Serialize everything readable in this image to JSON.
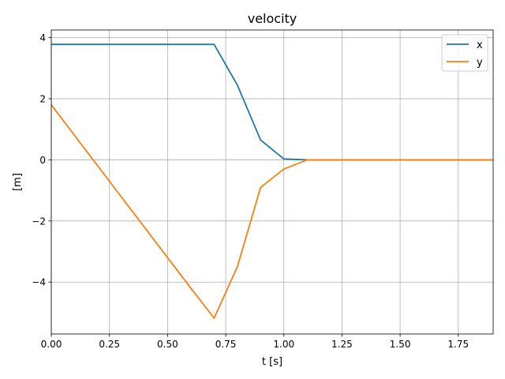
{
  "chart_data": {
    "type": "line",
    "title": "velocity",
    "xlabel": "t [s]",
    "ylabel": "[m]",
    "xlim": [
      0.0,
      1.9
    ],
    "ylim": [
      -5.7,
      4.25
    ],
    "xticks": [
      0.0,
      0.25,
      0.5,
      0.75,
      1.0,
      1.25,
      1.5,
      1.75
    ],
    "xtick_labels": [
      "0.00",
      "0.25",
      "0.50",
      "0.75",
      "1.00",
      "1.25",
      "1.50",
      "1.75"
    ],
    "yticks": [
      4,
      2,
      0,
      -2,
      -4
    ],
    "ytick_labels": [
      "4",
      "2",
      "0",
      "−2",
      "−4"
    ],
    "grid": true,
    "legend_position": "top-right",
    "series": [
      {
        "name": "x",
        "color": "#1f77b4",
        "x": [
          0.0,
          0.1,
          0.2,
          0.3,
          0.4,
          0.5,
          0.6,
          0.7,
          0.8,
          0.9,
          1.0,
          1.1,
          1.2,
          1.3,
          1.4,
          1.5,
          1.6,
          1.7,
          1.8,
          1.9
        ],
        "y": [
          3.78,
          3.78,
          3.78,
          3.78,
          3.78,
          3.78,
          3.78,
          3.78,
          2.45,
          0.65,
          0.03,
          0.0,
          0.0,
          0.0,
          0.0,
          0.0,
          0.0,
          0.0,
          0.0,
          0.0
        ]
      },
      {
        "name": "y",
        "color": "#ff7f0e",
        "x": [
          0.0,
          0.1,
          0.2,
          0.3,
          0.4,
          0.5,
          0.6,
          0.7,
          0.8,
          0.9,
          1.0,
          1.1,
          1.2,
          1.3,
          1.4,
          1.5,
          1.6,
          1.7,
          1.8,
          1.9
        ],
        "y": [
          1.8,
          0.8,
          -0.2,
          -1.2,
          -2.2,
          -3.2,
          -4.2,
          -5.18,
          -3.5,
          -0.9,
          -0.3,
          0.0,
          0.0,
          0.0,
          0.0,
          0.0,
          0.0,
          0.0,
          0.0,
          0.0
        ]
      }
    ]
  }
}
